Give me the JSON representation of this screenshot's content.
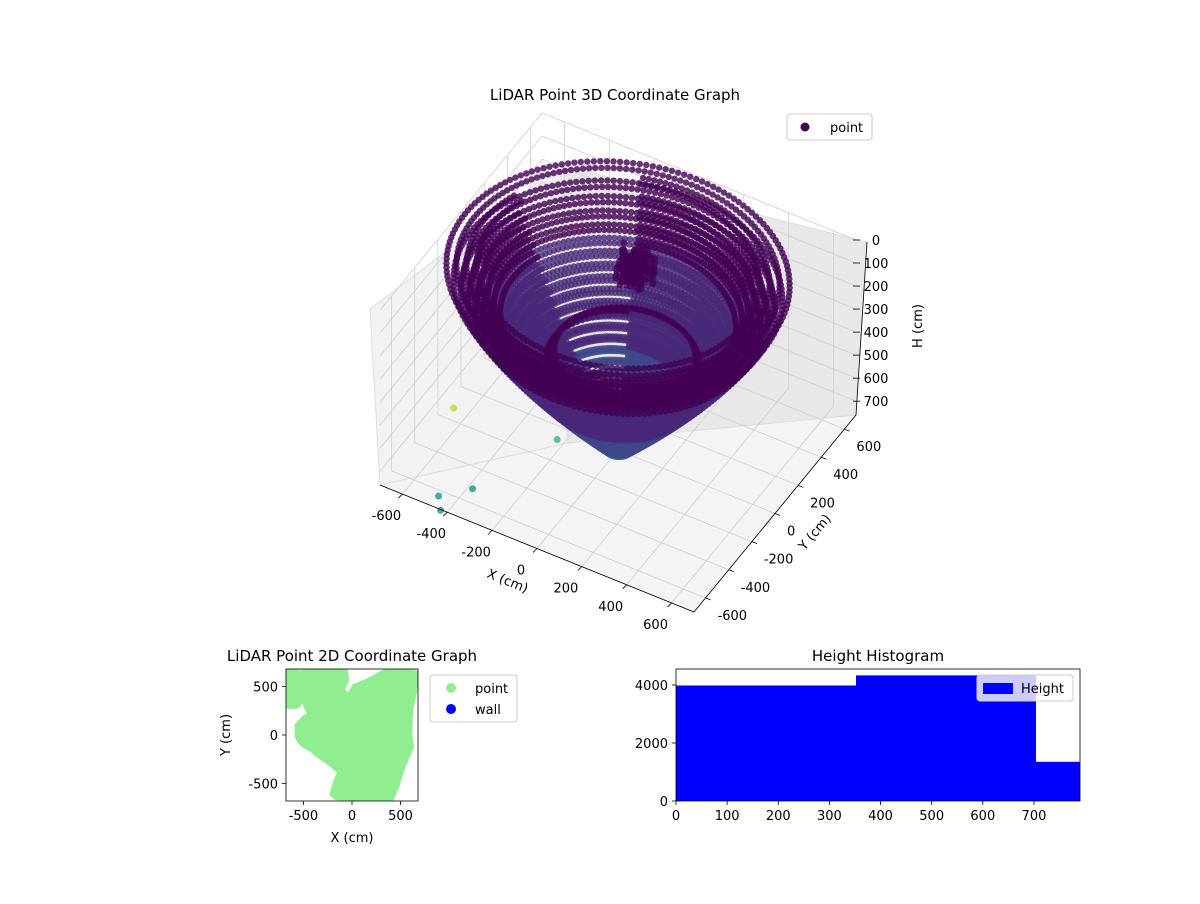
{
  "figure": {
    "background": "#ffffff"
  },
  "chart_data": [
    {
      "type": "scatter3d",
      "title": "LiDAR Point 3D Coordinate Graph",
      "xlabel": "X (cm)",
      "ylabel": "Y (cm)",
      "zlabel": "H (cm)",
      "xlim": [
        -700,
        700
      ],
      "ylim": [
        -700,
        700
      ],
      "zlim": [
        0,
        760
      ],
      "z_inverted": true,
      "x_ticks": [
        -600,
        -400,
        -200,
        0,
        200,
        400,
        600
      ],
      "y_ticks": [
        -600,
        -400,
        -200,
        0,
        200,
        400,
        600
      ],
      "z_ticks": [
        0,
        100,
        200,
        300,
        400,
        500,
        600,
        700
      ],
      "legend": {
        "placement": "top-right",
        "entries": [
          {
            "name": "point",
            "color": "#440154"
          }
        ]
      },
      "colormap": "viridis",
      "structure": {
        "bowl_rings_radius_cm": [
          560,
          600,
          640,
          680
        ],
        "bowl_center_depth_cm": 750,
        "bowl_rim_height_cm": 0,
        "central_cluster": {
          "x": 0,
          "y": 150,
          "h_range": [
            0,
            120
          ]
        }
      },
      "outliers": [
        {
          "x": -640,
          "y": -180,
          "h": 720,
          "color": "#b5de2b"
        },
        {
          "x": -220,
          "y": -100,
          "h": 740,
          "color": "#35b779"
        },
        {
          "x": -380,
          "y": -520,
          "h": 760,
          "color": "#21918c"
        },
        {
          "x": -480,
          "y": -620,
          "h": 770,
          "color": "#21918c"
        },
        {
          "x": -440,
          "y": -680,
          "h": 780,
          "color": "#21918c"
        }
      ]
    },
    {
      "type": "scatter",
      "title": "LiDAR Point 2D Coordinate Graph",
      "xlabel": "X (cm)",
      "ylabel": "Y (cm)",
      "xlim": [
        -680,
        680
      ],
      "ylim": [
        -680,
        680
      ],
      "x_ticks": [
        -500,
        0,
        500
      ],
      "y_ticks": [
        -500,
        0,
        500
      ],
      "legend": {
        "placement": "outside-right",
        "entries": [
          {
            "name": "point",
            "color": "#90ee90"
          },
          {
            "name": "wall",
            "color": "#0000ff"
          }
        ]
      },
      "series": [
        {
          "name": "point",
          "color": "#90ee90",
          "outline_cm": [
            [
              -660,
              690
            ],
            [
              -540,
              640
            ],
            [
              -320,
              680
            ],
            [
              -170,
              690
            ],
            [
              -70,
              660
            ],
            [
              -60,
              560
            ],
            [
              -110,
              470
            ],
            [
              -40,
              380
            ],
            [
              30,
              500
            ],
            [
              180,
              560
            ],
            [
              320,
              640
            ],
            [
              540,
              690
            ],
            [
              650,
              640
            ],
            [
              650,
              500
            ],
            [
              600,
              260
            ],
            [
              590,
              0
            ],
            [
              610,
              -120
            ],
            [
              560,
              -230
            ],
            [
              500,
              -380
            ],
            [
              460,
              -520
            ],
            [
              400,
              -660
            ],
            [
              160,
              -660
            ],
            [
              -30,
              -650
            ],
            [
              -160,
              -640
            ],
            [
              -200,
              -610
            ],
            [
              -170,
              -500
            ],
            [
              -120,
              -380
            ],
            [
              -210,
              -300
            ],
            [
              -350,
              -200
            ],
            [
              -410,
              -150
            ],
            [
              -480,
              -110
            ],
            [
              -530,
              -70
            ],
            [
              -560,
              -10
            ],
            [
              -560,
              100
            ],
            [
              -480,
              180
            ],
            [
              -420,
              200
            ],
            [
              -470,
              300
            ],
            [
              -500,
              390
            ],
            [
              -570,
              300
            ],
            [
              -660,
              300
            ]
          ]
        }
      ]
    },
    {
      "type": "bar",
      "title": "Height Histogram",
      "xlabel": "",
      "ylabel": "",
      "xlim": [
        0,
        790
      ],
      "ylim": [
        0,
        4550
      ],
      "x_ticks": [
        0,
        100,
        200,
        300,
        400,
        500,
        600,
        700
      ],
      "y_ticks": [
        0,
        2000,
        4000
      ],
      "legend": {
        "placement": "top-right",
        "entries": [
          {
            "name": "Height",
            "color": "#0000ff"
          }
        ]
      },
      "series": [
        {
          "name": "Height",
          "color": "#0000ff",
          "bins": [
            {
              "x0": 0,
              "x1": 352,
              "value": 3980
            },
            {
              "x0": 352,
              "x1": 704,
              "value": 4330
            },
            {
              "x0": 704,
              "x1": 790,
              "value": 1350
            }
          ]
        }
      ]
    }
  ]
}
